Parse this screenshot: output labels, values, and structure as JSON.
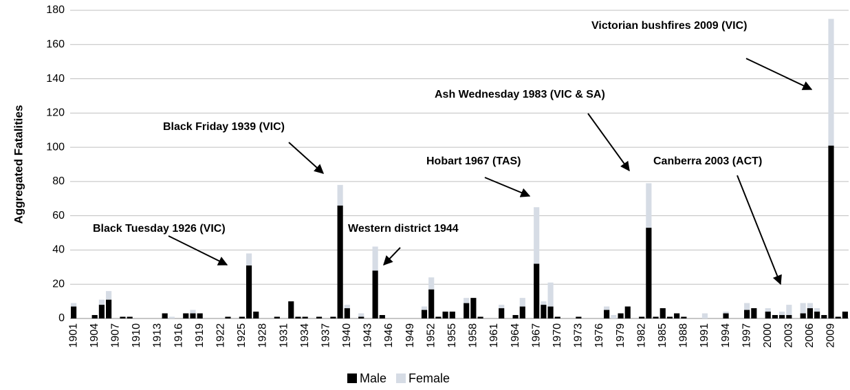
{
  "chart_data": {
    "type": "stacked_bar",
    "y_label": "Aggregated Fatalities",
    "categories": [
      "1901",
      null,
      null,
      "1904",
      null,
      null,
      "1907",
      null,
      null,
      "1910",
      null,
      null,
      "1913",
      null,
      null,
      "1916",
      null,
      null,
      "1919",
      null,
      null,
      "1922",
      null,
      null,
      "1925",
      null,
      null,
      "1928",
      null,
      null,
      "1931",
      null,
      null,
      "1934",
      null,
      null,
      "1937",
      null,
      null,
      "1940",
      null,
      null,
      "1943",
      null,
      null,
      "1946",
      null,
      null,
      "1949",
      null,
      null,
      "1952",
      null,
      null,
      "1955",
      null,
      null,
      "1958",
      null,
      null,
      "1961",
      null,
      null,
      "1964",
      null,
      null,
      "1967",
      null,
      null,
      "1970",
      null,
      null,
      "1973",
      null,
      null,
      "1976",
      null,
      null,
      "1979",
      null,
      null,
      "1982",
      null,
      null,
      "1985",
      null,
      null,
      "1988",
      null,
      null,
      "1991",
      null,
      null,
      "1994",
      null,
      null,
      "1997",
      null,
      null,
      "2000",
      null,
      null,
      "2003",
      null,
      null,
      "2006",
      null,
      null,
      "2009",
      null,
      null
    ],
    "series": [
      {
        "name": "Male",
        "color": "#000000",
        "values": [
          7,
          0,
          0,
          2,
          8,
          11,
          0,
          1,
          1,
          0,
          0,
          0,
          0,
          3,
          0,
          0,
          3,
          3,
          3,
          0,
          0,
          0,
          1,
          0,
          1,
          31,
          4,
          0,
          0,
          1,
          0,
          10,
          1,
          1,
          0,
          1,
          0,
          1,
          66,
          6,
          0,
          1,
          0,
          28,
          2,
          0,
          0,
          0,
          0,
          0,
          5,
          17,
          1,
          4,
          4,
          0,
          9,
          12,
          1,
          0,
          0,
          6,
          0,
          2,
          7,
          0,
          32,
          8,
          7,
          1,
          0,
          0,
          1,
          0,
          0,
          0,
          5,
          0,
          3,
          7,
          0,
          1,
          53,
          1,
          6,
          1,
          3,
          1,
          0,
          0,
          0,
          0,
          0,
          3,
          0,
          0,
          5,
          6,
          0,
          4,
          2,
          2,
          2,
          0,
          3,
          6,
          4,
          2,
          101,
          1,
          4
        ]
      },
      {
        "name": "Female",
        "color": "#d6dce5",
        "values": [
          2,
          0,
          0,
          0,
          3,
          5,
          0,
          0,
          0,
          0,
          0,
          0,
          0,
          0,
          1,
          0,
          0,
          2,
          0,
          0,
          0,
          0,
          0,
          0,
          0,
          7,
          0,
          0,
          0,
          0,
          0,
          0,
          0,
          0,
          0,
          0,
          0,
          0,
          12,
          2,
          0,
          2,
          0,
          14,
          0,
          0,
          0,
          0,
          0,
          0,
          2,
          7,
          0,
          0,
          0,
          0,
          3,
          0,
          0,
          0,
          0,
          2,
          0,
          0,
          5,
          0,
          33,
          2,
          14,
          0,
          0,
          0,
          0,
          0,
          0,
          0,
          2,
          2,
          0,
          0,
          0,
          0,
          26,
          0,
          0,
          0,
          0,
          0,
          0,
          0,
          3,
          0,
          0,
          1,
          0,
          0,
          4,
          0,
          0,
          2,
          0,
          2,
          6,
          0,
          6,
          3,
          2,
          0,
          74,
          0,
          0
        ]
      }
    ],
    "ylim": [
      0,
      180
    ],
    "yticks": [
      0,
      20,
      40,
      60,
      80,
      100,
      120,
      140,
      160,
      180
    ],
    "grid": true,
    "legend": "bottom",
    "annotations": [
      "Victorian bushfires 2009 (VIC)",
      "Ash Wednesday 1983 (VIC & SA)",
      "Black Friday 1939 (VIC)",
      "Hobart 1967 (TAS)",
      "Canberra 2003 (ACT)",
      "Black Tuesday 1926 (VIC)",
      "Western district 1944"
    ]
  }
}
